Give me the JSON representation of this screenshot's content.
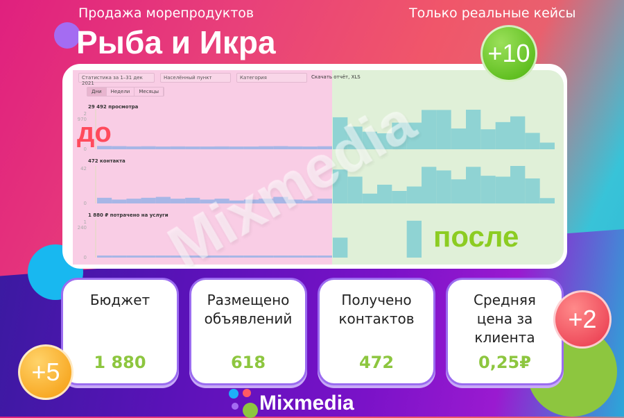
{
  "header": {
    "subtitle": "Продажа морепродуктов",
    "title": "Рыба и Икра",
    "tagline": "Только реальные кейсы"
  },
  "dashboard": {
    "period_select": "Статистика за 1–31 дек 2021",
    "city_select": "Населённый пункт",
    "category_select": "Категория",
    "download_link": "Скачать отчёт, XLS",
    "tabs": [
      "Дни",
      "Недели",
      "Месяцы"
    ],
    "views_label": "29 492 просмотра",
    "views_max": "2 970",
    "views_zero": "0",
    "contacts_label": "472 контакта",
    "contacts_max": "42",
    "contacts_zero": "0",
    "spend_label": "1 880 ₽ потрачено на услуги",
    "spend_max": "1 240",
    "spend_zero": "0",
    "before_label": "до",
    "after_label": "после",
    "watermark": "Mixmedia"
  },
  "chart_data": [
    {
      "type": "bar",
      "name": "views",
      "ylim": [
        0,
        2970
      ],
      "before": [
        90,
        80,
        60,
        70,
        50,
        60,
        50,
        40,
        60,
        40,
        30,
        70,
        80,
        60,
        50,
        70
      ],
      "after": [
        2400,
        1700,
        1320,
        1200,
        2000,
        2000,
        2950,
        2950,
        1560,
        2970,
        1500,
        2040,
        2470,
        1230,
        500
      ]
    },
    {
      "type": "bar",
      "name": "contacts",
      "ylim": [
        0,
        42
      ],
      "before": [
        4,
        2,
        3,
        4,
        5,
        3,
        4,
        2,
        3,
        1,
        2,
        3,
        5,
        2,
        1,
        3
      ],
      "after": [
        38,
        30,
        11,
        21,
        14,
        19,
        41,
        37,
        27,
        41,
        31,
        30,
        42,
        28,
        6
      ]
    },
    {
      "type": "bar",
      "name": "spend",
      "ylim": [
        0,
        1240
      ],
      "before": [
        0,
        0,
        0,
        0,
        0,
        0,
        0,
        0,
        0,
        0,
        0,
        0,
        0,
        0,
        0,
        0
      ],
      "after": [
        660,
        0,
        0,
        0,
        0,
        1220,
        0,
        0,
        0,
        0,
        0,
        0,
        0,
        0,
        0
      ]
    }
  ],
  "cards": [
    {
      "title": "Бюджет",
      "value": "1 880"
    },
    {
      "title": "Размещено объявлений",
      "value": "618"
    },
    {
      "title": "Получено контактов",
      "value": "472"
    },
    {
      "title": "Средняя цена за клиента",
      "value": "0,25₽"
    }
  ],
  "badges": {
    "green": "+10",
    "red": "+2",
    "orange": "+5"
  },
  "logo": "Mixmedia",
  "colors": {
    "before_bg": "#f9cde5",
    "after_bg": "#e0f0d8",
    "before_bar": "#a7b6e6",
    "after_bar": "#8fd3d3",
    "accent_green": "#8dc63f",
    "do_red": "#ff4a5c"
  }
}
